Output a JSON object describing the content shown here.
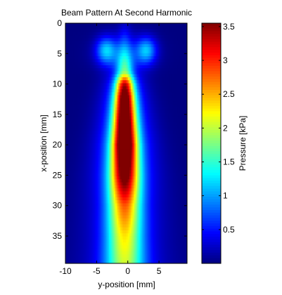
{
  "chart_data": {
    "type": "heatmap",
    "title": "Beam Pattern At Second Harmonic",
    "xlabel": "y-position [mm]",
    "ylabel": "x-position [mm]",
    "xlim": [
      -10,
      9.5
    ],
    "ylim": [
      0,
      39.5
    ],
    "y_reversed": true,
    "xticks": [
      -10,
      -5,
      0,
      5
    ],
    "yticks": [
      0,
      5,
      10,
      15,
      20,
      25,
      30,
      35
    ],
    "colorbar": {
      "label": "Pressure [kPa]",
      "colormap": "jet",
      "range": [
        0,
        3.55
      ],
      "ticks": [
        0.5,
        1,
        1.5,
        2,
        2.5,
        3,
        3.5
      ]
    },
    "field_model": {
      "peak_kpa": 3.55,
      "beam_center_y_mm": -0.5,
      "near_field_lobes_y_mm": [
        -3.5,
        3
      ],
      "near_field_lobe_x_mm": 4.5,
      "focus_x_mm": 20,
      "axial_profile": [
        {
          "x": 0,
          "p": 0.15
        },
        {
          "x": 3,
          "p": 0.4
        },
        {
          "x": 5,
          "p": 0.7
        },
        {
          "x": 8,
          "p": 1.3
        },
        {
          "x": 10,
          "p": 2.6
        },
        {
          "x": 12,
          "p": 3.1
        },
        {
          "x": 15,
          "p": 3.3
        },
        {
          "x": 20,
          "p": 3.5
        },
        {
          "x": 25,
          "p": 3.0
        },
        {
          "x": 30,
          "p": 2.2
        },
        {
          "x": 35,
          "p": 1.8
        },
        {
          "x": 39.5,
          "p": 1.6
        }
      ]
    }
  }
}
